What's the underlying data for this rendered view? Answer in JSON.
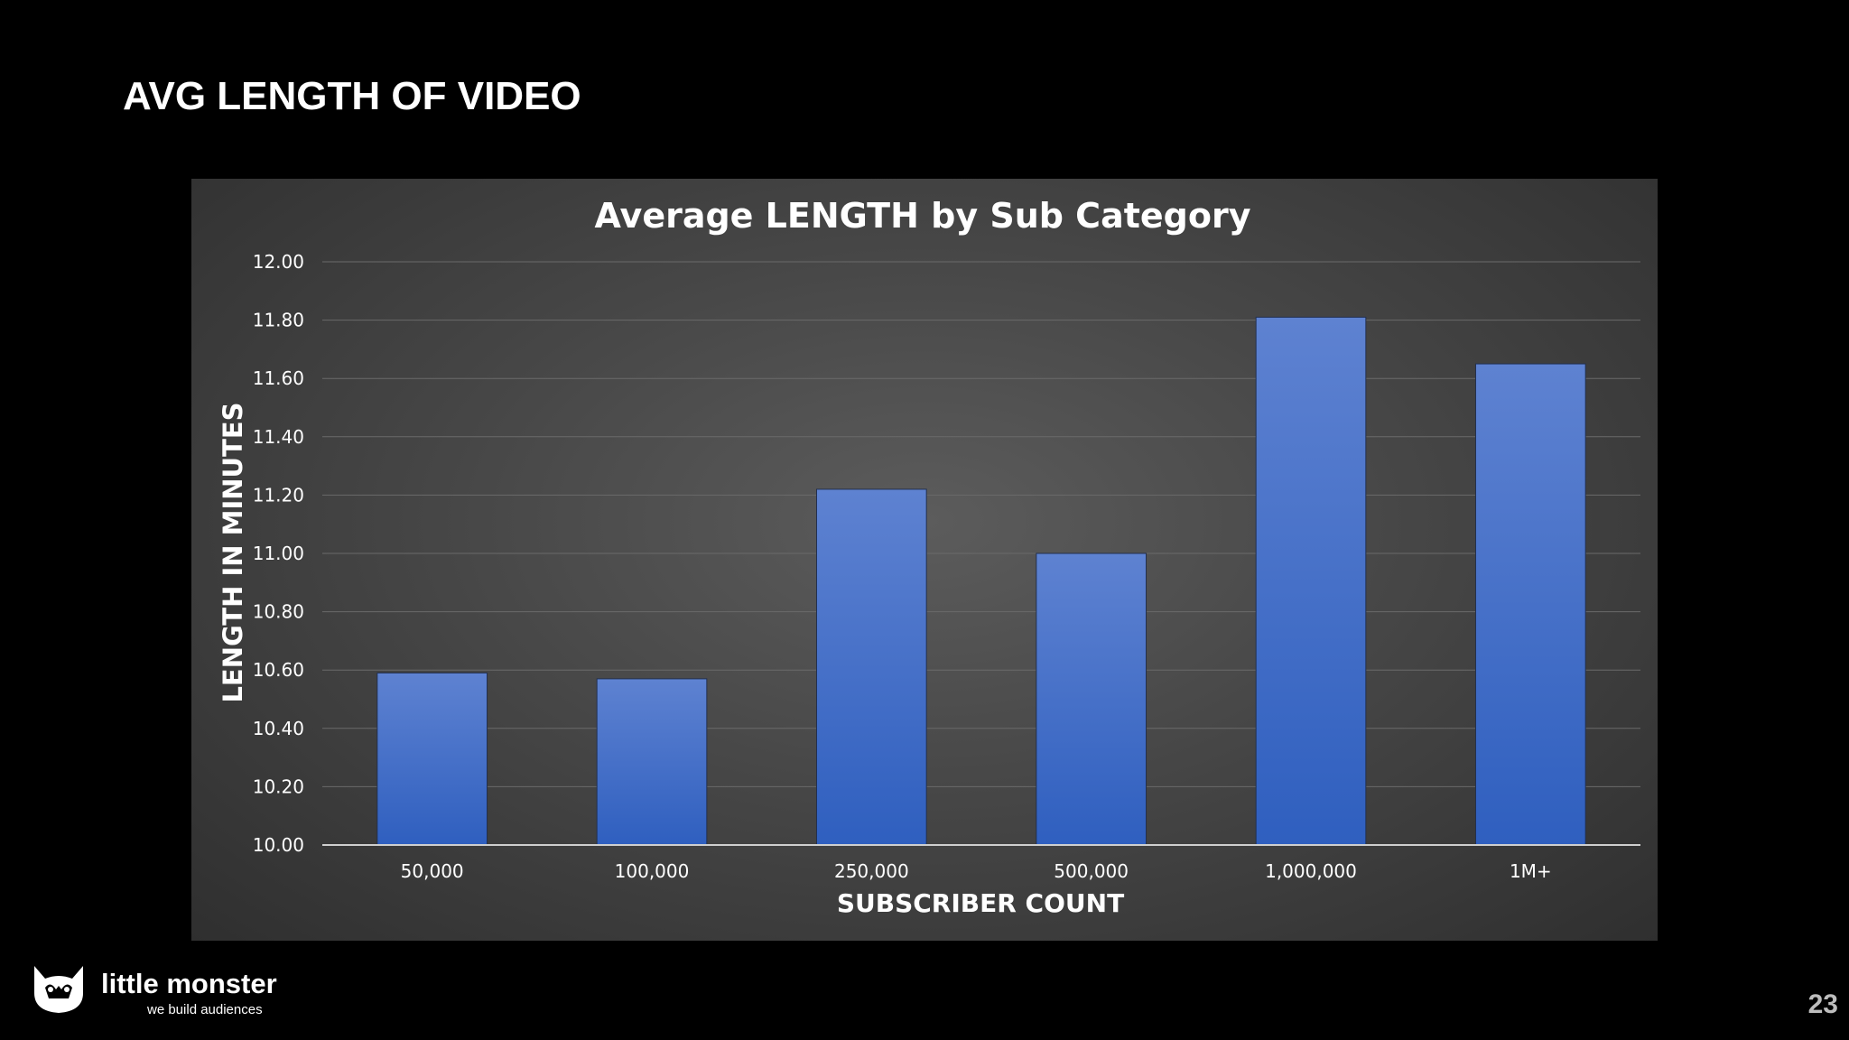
{
  "slide": {
    "title": "AVG LENGTH OF VIDEO",
    "page_number": "23"
  },
  "logo": {
    "name": "little monster",
    "tagline": "we build audiences"
  },
  "colors": {
    "background": "#000000",
    "bar_top": "#5e82d1",
    "bar_bottom": "#2f5fbf",
    "grid": "#6a6a6a",
    "axis_text": "#ffffff"
  },
  "chart_data": {
    "type": "bar",
    "title": "Average LENGTH by Sub Category",
    "xlabel": "SUBSCRIBER COUNT",
    "ylabel": "LENGTH IN MINUTES",
    "categories": [
      "50,000",
      "100,000",
      "250,000",
      "500,000",
      "1,000,000",
      "1M+"
    ],
    "values": [
      10.59,
      10.57,
      11.22,
      11.0,
      11.81,
      11.65
    ],
    "ylim": [
      10.0,
      12.0
    ],
    "yticks": [
      "10.00",
      "10.20",
      "10.40",
      "10.60",
      "10.80",
      "11.00",
      "11.20",
      "11.40",
      "11.60",
      "11.80",
      "12.00"
    ],
    "grid": true,
    "legend": "none"
  }
}
